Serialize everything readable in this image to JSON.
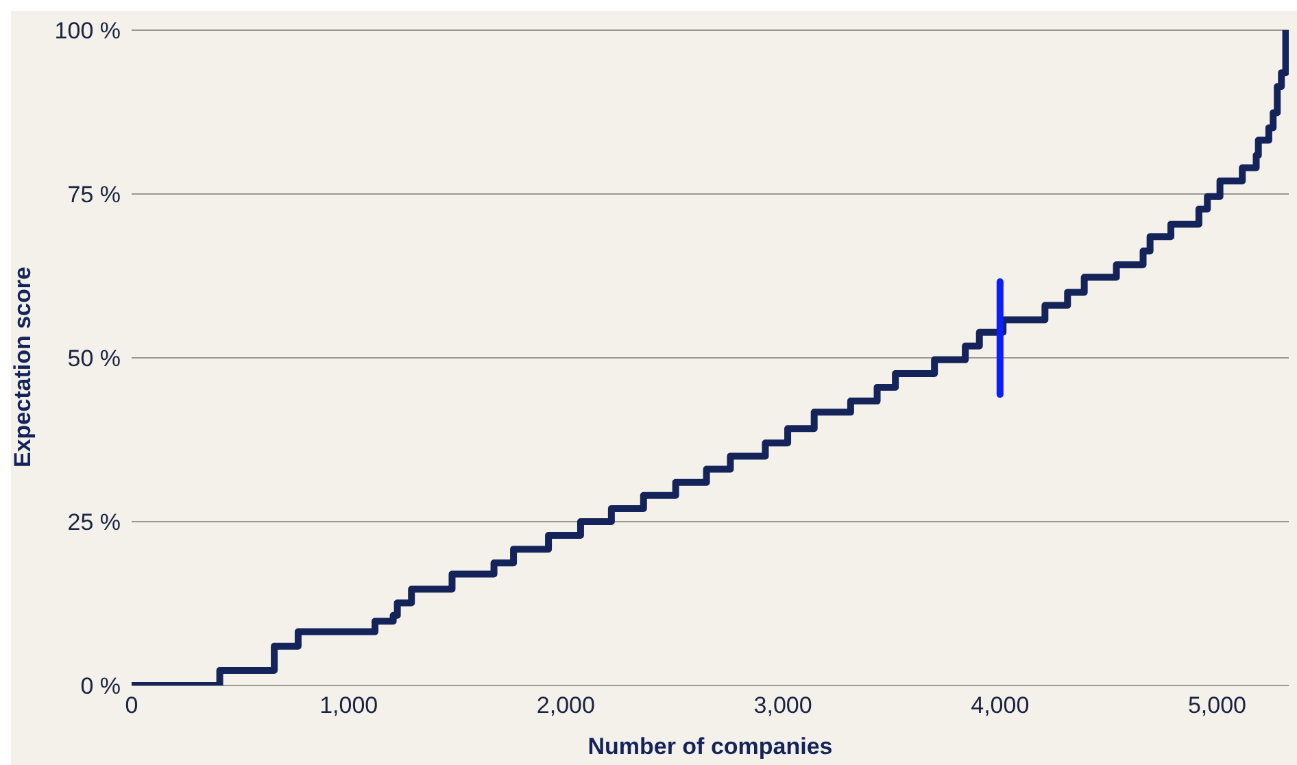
{
  "chart_data": {
    "type": "step",
    "xlabel": "Number of companies",
    "ylabel": "Expectation score",
    "xlim": [
      0,
      5330
    ],
    "ylim": [
      0,
      100
    ],
    "xticks": [
      0,
      {
        "value": 1000,
        "label": "1,000"
      },
      {
        "value": 2000,
        "label": "2,000"
      },
      {
        "value": 3000,
        "label": "3,000"
      },
      {
        "value": 4000,
        "label": "4,000"
      },
      {
        "value": 5000,
        "label": "5,000"
      }
    ],
    "yticks": [
      {
        "value": 0,
        "label": "0 %"
      },
      {
        "value": 25,
        "label": "25 %"
      },
      {
        "value": 50,
        "label": "50 %"
      },
      {
        "value": 75,
        "label": "75 %"
      },
      {
        "value": 100,
        "label": "100 %"
      }
    ],
    "grid": "y",
    "marker": "none",
    "line_style": "solid",
    "series": [
      {
        "color": "#14245a",
        "x": [
          0,
          406,
          657,
          767,
          1121,
          1205,
          1224,
          1289,
          1476,
          1669,
          1759,
          1920,
          2068,
          2210,
          2358,
          2506,
          2648,
          2758,
          2919,
          3022,
          3144,
          3312,
          3434,
          3518,
          3698,
          3840,
          3905,
          4014,
          4207,
          4311,
          4388,
          4536,
          4659,
          4691,
          4787,
          4916,
          4955,
          5013,
          5116,
          5180,
          5190,
          5238,
          5258,
          5277,
          5296,
          5316,
          5320
        ],
        "values": [
          0,
          2.3,
          6,
          8.2,
          9.8,
          10.7,
          12.6,
          14.7,
          17,
          18.7,
          20.8,
          22.9,
          25,
          27,
          29,
          31,
          33,
          35,
          37,
          39.2,
          41.7,
          43.4,
          45.5,
          47.6,
          49.7,
          51.8,
          53.9,
          55.8,
          58,
          60,
          62.3,
          64.2,
          66.3,
          68.5,
          70.4,
          72.7,
          74.6,
          77,
          79,
          80.9,
          83.2,
          85.1,
          87.4,
          91.4,
          93.5,
          100,
          100
        ]
      },
      {
        "type": "line",
        "color": "#0a1eff",
        "x": [
          4000,
          4000
        ],
        "values": [
          44.4,
          61.6
        ]
      }
    ]
  }
}
